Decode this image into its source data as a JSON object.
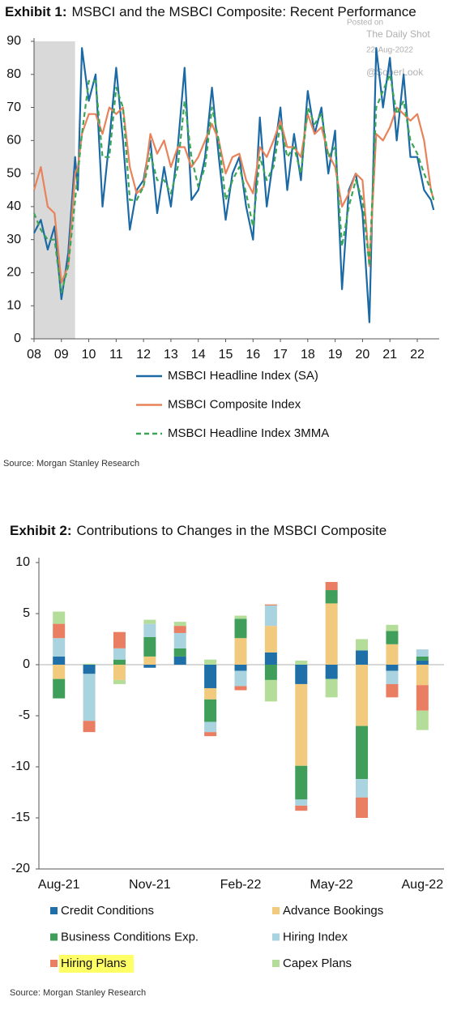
{
  "chart_data": [
    {
      "type": "line",
      "label": "Exhibit 1:",
      "title": "MSBCI and the MSBCI Composite: Recent Performance",
      "annotations": [
        "Posted on",
        "The Daily Shot",
        "22-Aug-2022",
        "@SoberLook"
      ],
      "source": "Source: Morgan Stanley Research",
      "shade": {
        "x": [
          2008,
          2009.5
        ],
        "color": "#d9d9d9"
      },
      "x": [
        2008.0,
        2008.25,
        2008.5,
        2008.75,
        2009.0,
        2009.25,
        2009.5,
        2009.6,
        2009.75,
        2010.0,
        2010.25,
        2010.5,
        2010.75,
        2011.0,
        2011.25,
        2011.5,
        2011.75,
        2012.0,
        2012.25,
        2012.5,
        2012.75,
        2013.0,
        2013.25,
        2013.5,
        2013.75,
        2014.0,
        2014.25,
        2014.5,
        2014.75,
        2015.0,
        2015.25,
        2015.5,
        2015.75,
        2016.0,
        2016.25,
        2016.5,
        2016.75,
        2017.0,
        2017.25,
        2017.5,
        2017.75,
        2018.0,
        2018.25,
        2018.5,
        2018.75,
        2019.0,
        2019.25,
        2019.5,
        2019.75,
        2020.0,
        2020.25,
        2020.5,
        2020.75,
        2021.0,
        2021.25,
        2021.5,
        2021.75,
        2022.0,
        2022.25,
        2022.5,
        2022.6
      ],
      "series": [
        {
          "name": "MSBCI Headline Index (SA)",
          "color": "#1c6aa5",
          "dash": false,
          "values": [
            32,
            36,
            27,
            34,
            12,
            26,
            55,
            45,
            88,
            72,
            80,
            40,
            60,
            82,
            60,
            33,
            45,
            48,
            60,
            38,
            52,
            40,
            58,
            82,
            42,
            45,
            55,
            76,
            55,
            36,
            50,
            55,
            40,
            30,
            67,
            40,
            55,
            70,
            45,
            62,
            48,
            75,
            62,
            70,
            50,
            63,
            15,
            45,
            50,
            38,
            5,
            88,
            70,
            85,
            60,
            80,
            55,
            55,
            45,
            42,
            39
          ]
        },
        {
          "name": "MSBCI Composite Index",
          "color": "#e8825a",
          "dash": false,
          "values": [
            45,
            52,
            40,
            38,
            17,
            22,
            50,
            52,
            62,
            68,
            68,
            62,
            70,
            68,
            70,
            52,
            44,
            46,
            62,
            56,
            60,
            52,
            58,
            58,
            52,
            55,
            60,
            65,
            60,
            50,
            55,
            56,
            48,
            44,
            58,
            55,
            60,
            66,
            58,
            58,
            55,
            68,
            62,
            64,
            56,
            52,
            40,
            44,
            50,
            48,
            22,
            62,
            60,
            64,
            70,
            68,
            66,
            68,
            60,
            45,
            42
          ]
        },
        {
          "name": "MSBCI Headline Index 3MMA",
          "color": "#3aa655",
          "dash": true,
          "values": [
            38,
            33,
            30,
            30,
            14,
            22,
            42,
            50,
            62,
            78,
            78,
            55,
            55,
            76,
            70,
            42,
            42,
            46,
            56,
            48,
            48,
            44,
            52,
            72,
            55,
            46,
            52,
            70,
            60,
            42,
            48,
            52,
            44,
            34,
            55,
            48,
            52,
            65,
            55,
            58,
            50,
            70,
            65,
            68,
            55,
            58,
            28,
            40,
            48,
            42,
            22,
            70,
            75,
            80,
            68,
            72,
            60,
            56,
            50,
            45,
            42
          ]
        }
      ],
      "xlim": [
        2008,
        2022.8
      ],
      "xticks": [
        {
          "value": 2008,
          "label": "08"
        },
        {
          "value": 2009,
          "label": "09"
        },
        {
          "value": 2010,
          "label": "10"
        },
        {
          "value": 2011,
          "label": "11"
        },
        {
          "value": 2012,
          "label": "12"
        },
        {
          "value": 2013,
          "label": "13"
        },
        {
          "value": 2014,
          "label": "14"
        },
        {
          "value": 2015,
          "label": "15"
        },
        {
          "value": 2016,
          "label": "16"
        },
        {
          "value": 2017,
          "label": "17"
        },
        {
          "value": 2018,
          "label": "18"
        },
        {
          "value": 2019,
          "label": "19"
        },
        {
          "value": 2020,
          "label": "20"
        },
        {
          "value": 2021,
          "label": "21"
        },
        {
          "value": 2022,
          "label": "22"
        }
      ],
      "ylim": [
        0,
        90
      ],
      "yticks": [
        0,
        10,
        20,
        30,
        40,
        50,
        60,
        70,
        80,
        90
      ]
    },
    {
      "type": "stacked-bar",
      "label": "Exhibit 2:",
      "title": "Contributions to Changes in the MSBCI Composite",
      "source": "Source: Morgan Stanley Research",
      "categories": [
        "Aug-21",
        null,
        null,
        "Nov-21",
        null,
        null,
        "Feb-22",
        null,
        null,
        "May-22",
        null,
        null,
        "Aug-22"
      ],
      "series": [
        {
          "name": "Credit Conditions",
          "color": "#1f6fa8",
          "values": [
            0.8,
            -0.9,
            0,
            -0.3,
            0.8,
            -2.3,
            -0.6,
            1.2,
            -1.9,
            -1.4,
            1.4,
            -0.6,
            0.4
          ]
        },
        {
          "name": "Advance Bookings",
          "color": "#f2ca7e",
          "values": [
            -1.4,
            0,
            -1.5,
            0.8,
            0,
            -1.1,
            2.6,
            2.6,
            -8.0,
            6.0,
            -6.0,
            2.0,
            -2.0
          ]
        },
        {
          "name": "Business Conditions Exp.",
          "color": "#3f9f5a",
          "values": [
            -1.9,
            0,
            0.5,
            1.9,
            0.8,
            -2.2,
            1.9,
            -1.5,
            -3.3,
            1.3,
            -5.2,
            1.3,
            0.4
          ]
        },
        {
          "name": "Hiring Index",
          "color": "#a9d3df",
          "values": [
            1.8,
            -4.6,
            1.1,
            1.3,
            1.5,
            -1.0,
            -1.5,
            2.0,
            -0.6,
            0,
            -1.8,
            -1.3,
            0.7
          ]
        },
        {
          "name": "Hiring Plans",
          "color": "#ea7e62",
          "values": [
            1.4,
            -1.1,
            1.6,
            0,
            0.7,
            -0.4,
            -0.4,
            0.1,
            -0.5,
            0.8,
            -2.0,
            -1.3,
            -2.5
          ]
        },
        {
          "name": "Capex Plans",
          "color": "#b5dd9a",
          "values": [
            1.2,
            0.1,
            -0.4,
            0.4,
            0.4,
            0.5,
            0.3,
            -2.1,
            0.4,
            -1.8,
            1.1,
            0.6,
            -1.9
          ]
        }
      ],
      "legend_highlight": {
        "series": 4,
        "color": "#ffff66"
      },
      "ylim": [
        -20,
        10
      ],
      "yticks": [
        -20,
        -15,
        -10,
        -5,
        0,
        5,
        10
      ]
    }
  ]
}
